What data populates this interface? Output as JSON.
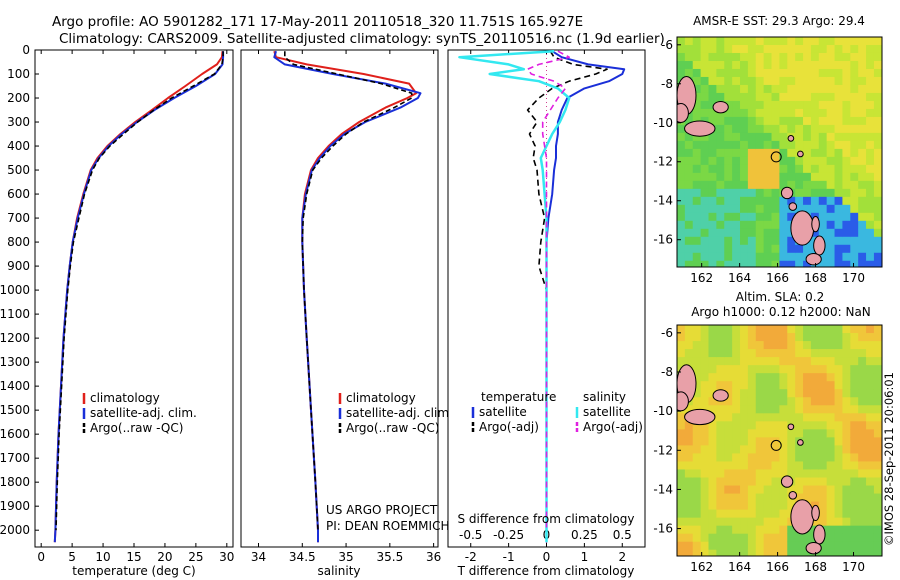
{
  "header": {
    "title_line1": "Argo profile: AO 5901282_171 17-May-2011 20110518_320 11.751S 165.927E",
    "title_line2": "Climatology: CARS2009. Satellite-adjusted climatology: synTS_20110516.nc (1.9d earlier)"
  },
  "side_stamp": "©IMOS 28-Sep-2011 20:06:01",
  "credits": {
    "line1": "US ARGO PROJECT",
    "line2": "PI: DEAN ROEMMICH"
  },
  "colors": {
    "climatology": "#e0201b",
    "satellite": "#1a2fd8",
    "argo": "#000000",
    "sal_satellite": "#33e8f0",
    "sal_argo": "#e020e0"
  },
  "chart_data": [
    {
      "id": "temperature",
      "type": "line",
      "xlabel": "temperature (deg C)",
      "ylabel": "depth",
      "xlim": [
        -1,
        31
      ],
      "ylim": [
        2070,
        0
      ],
      "xticks": [
        0,
        5,
        10,
        15,
        20,
        25,
        30
      ],
      "yticks": [
        0,
        100,
        200,
        300,
        400,
        500,
        600,
        700,
        800,
        900,
        1000,
        1100,
        1200,
        1300,
        1400,
        1500,
        1600,
        1700,
        1800,
        1900,
        2000
      ],
      "legend": [
        "climatology",
        "satellite-adj. clim.",
        "Argo(..raw -QC)"
      ],
      "depth": [
        5,
        30,
        60,
        100,
        150,
        200,
        250,
        300,
        350,
        400,
        450,
        500,
        600,
        700,
        800,
        900,
        1000,
        1200,
        1400,
        1600,
        1800,
        2000,
        2050
      ],
      "series": [
        {
          "name": "climatology",
          "values": [
            29.3,
            29.2,
            28.4,
            26.0,
            23.3,
            20.5,
            17.9,
            15.2,
            12.8,
            10.7,
            9.1,
            8.0,
            6.8,
            5.8,
            5.1,
            4.6,
            4.2,
            3.6,
            3.2,
            2.8,
            2.5,
            2.3,
            2.2
          ]
        },
        {
          "name": "satellite-adj. clim.",
          "values": [
            29.4,
            29.4,
            29.3,
            28.1,
            25.0,
            21.5,
            18.3,
            15.5,
            13.0,
            10.9,
            9.3,
            8.1,
            6.9,
            5.9,
            5.1,
            4.6,
            4.2,
            3.6,
            3.2,
            2.8,
            2.5,
            2.3,
            2.2
          ]
        },
        {
          "name": "Argo(..raw -QC)",
          "values": [
            29.4,
            29.4,
            29.2,
            28.0,
            24.6,
            21.1,
            18.2,
            15.6,
            13.3,
            11.1,
            9.4,
            8.3,
            7.0,
            6.1,
            5.2,
            4.7,
            4.3,
            3.7,
            3.3,
            2.9,
            2.6,
            2.4,
            null
          ]
        }
      ]
    },
    {
      "id": "salinity",
      "type": "line",
      "xlabel": "salinity",
      "xlim": [
        33.8,
        36.05
      ],
      "ylim": [
        2070,
        0
      ],
      "xticks": [
        34,
        34.5,
        35,
        35.5,
        36
      ],
      "legend": [
        "climatology",
        "satellite-adj. clim.",
        "Argo(..raw -QC)"
      ],
      "depth": [
        5,
        30,
        60,
        100,
        140,
        180,
        200,
        240,
        300,
        350,
        400,
        450,
        500,
        600,
        700,
        800,
        1000,
        1200,
        1500,
        1800,
        2000,
        2050
      ],
      "series": [
        {
          "name": "climatology",
          "values": [
            34.18,
            34.2,
            34.55,
            35.2,
            35.72,
            35.8,
            35.7,
            35.45,
            35.15,
            34.95,
            34.8,
            34.68,
            34.6,
            34.53,
            34.5,
            34.5,
            34.52,
            34.55,
            34.6,
            34.65,
            34.68,
            34.68
          ]
        },
        {
          "name": "satellite-adj. clim.",
          "values": [
            34.2,
            34.18,
            34.3,
            34.85,
            35.45,
            35.85,
            35.82,
            35.62,
            35.22,
            34.98,
            34.82,
            34.7,
            34.61,
            34.54,
            34.5,
            34.5,
            34.52,
            34.55,
            34.6,
            34.65,
            34.68,
            34.68
          ]
        },
        {
          "name": "Argo(..raw -QC)",
          "values": [
            34.3,
            34.3,
            34.4,
            34.9,
            35.4,
            35.75,
            35.75,
            35.55,
            35.2,
            35.0,
            34.85,
            34.72,
            34.62,
            34.55,
            34.51,
            34.5,
            34.52,
            34.55,
            34.6,
            34.65,
            34.68,
            null
          ]
        }
      ]
    },
    {
      "id": "difference",
      "type": "line",
      "xlabel": "T difference from climatology",
      "xlabel_top": "S difference from climatology",
      "xlim": [
        -2.6,
        2.6
      ],
      "ylim": [
        2070,
        0
      ],
      "xticks_T": [
        -2,
        -1,
        0,
        1,
        2
      ],
      "xticks_S": [
        "-0.5",
        "-0.25",
        "0",
        "0.25",
        "0.5"
      ],
      "xticks_S_pos": [
        -2,
        -1,
        0,
        1,
        2
      ],
      "legend_headers": [
        "temperature",
        "salinity"
      ],
      "legend": [
        "satellite",
        "Argo(-adj)",
        "satellite",
        "Argo(-adj)"
      ],
      "depth": [
        5,
        30,
        60,
        80,
        100,
        130,
        160,
        200,
        250,
        300,
        350,
        400,
        450,
        500,
        600,
        700,
        800,
        900,
        1000,
        1200,
        1500,
        1800,
        2000,
        2050
      ],
      "series": [
        {
          "name": "T satellite",
          "group": "temperature",
          "values": [
            0.15,
            0.4,
            1.1,
            2.05,
            2.0,
            1.65,
            1.0,
            0.55,
            0.4,
            0.3,
            0.3,
            0.25,
            0.25,
            0.2,
            0.15,
            0.05,
            0.0,
            0.0,
            0.0,
            0.0,
            0.0,
            0.0,
            0.0,
            0.0
          ]
        },
        {
          "name": "T Argo(-adj)",
          "group": "temperature",
          "values": [
            0.1,
            0.2,
            0.7,
            1.6,
            1.3,
            0.6,
            0.15,
            -0.2,
            -0.5,
            -0.25,
            -0.45,
            -0.3,
            -0.35,
            -0.25,
            -0.2,
            -0.05,
            -0.15,
            -0.2,
            0.0,
            0.0,
            0.0,
            0.0,
            0.0,
            null
          ]
        },
        {
          "name": "S satellite",
          "group": "salinity",
          "values": [
            0.2,
            -2.3,
            -1.0,
            -0.6,
            -1.5,
            -0.2,
            0.3,
            0.6,
            0.5,
            0.35,
            0.15,
            0.0,
            -0.15,
            -0.1,
            -0.05,
            0.0,
            0.0,
            0.0,
            0.0,
            0.0,
            0.0,
            0.0,
            0.0,
            0.0
          ]
        },
        {
          "name": "S Argo(-adj)",
          "group": "salinity",
          "values": [
            0.3,
            0.6,
            -0.2,
            -0.5,
            -0.4,
            0.2,
            0.5,
            0.3,
            0.1,
            -0.1,
            -0.1,
            -0.05,
            0.0,
            0.0,
            0.0,
            0.0,
            0.0,
            0.0,
            0.0,
            0.0,
            0.0,
            0.0,
            0.0,
            null
          ]
        }
      ]
    },
    {
      "id": "sst_map",
      "type": "heatmap",
      "title": "AMSR-E SST: 29.3 Argo: 29.4",
      "xlim": [
        160.7,
        171.5
      ],
      "ylim": [
        -17.4,
        -5.6
      ],
      "xticks": [
        162,
        164,
        166,
        168,
        170
      ],
      "yticks": [
        -6,
        -8,
        -10,
        -12,
        -14,
        -16
      ],
      "float_position": {
        "lon": 165.927,
        "lat": -11.751
      }
    },
    {
      "id": "sla_map",
      "type": "heatmap",
      "title": "Altim. SLA: 0.2",
      "subtitle": "Argo h1000: 0.12 h2000: NaN",
      "xlim": [
        160.7,
        171.5
      ],
      "ylim": [
        -17.4,
        -5.6
      ],
      "xticks": [
        162,
        164,
        166,
        168,
        170
      ],
      "yticks": [
        -6,
        -8,
        -10,
        -12,
        -14,
        -16
      ],
      "float_position": {
        "lon": 165.927,
        "lat": -11.751
      }
    }
  ]
}
